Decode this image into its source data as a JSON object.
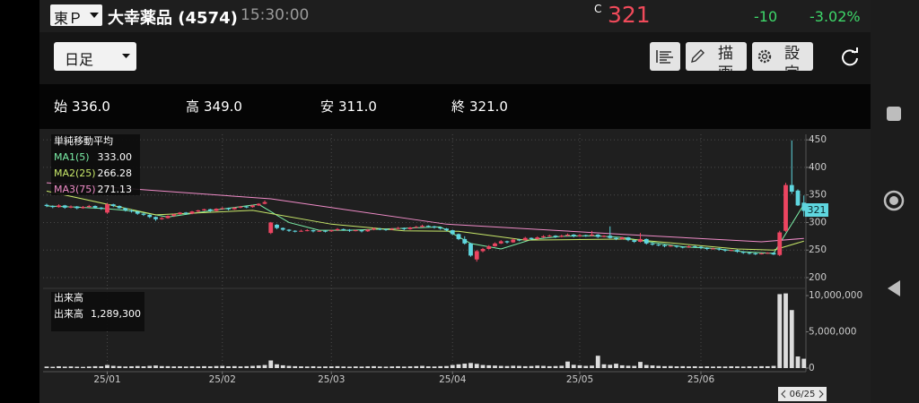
{
  "header": {
    "market": "東Ｐ",
    "name": "大幸薬品 (4574)",
    "time": "15:30:00",
    "price_flag": "C",
    "price": "321",
    "change": "-10",
    "change_pct": "-3.02%"
  },
  "toolbar": {
    "interval": "日足",
    "draw": "描画",
    "settings": "設定"
  },
  "ohlc": [
    {
      "label": "始",
      "value": "336.0"
    },
    {
      "label": "高",
      "value": "349.0"
    },
    {
      "label": "安",
      "value": "311.0"
    },
    {
      "label": "終",
      "value": "321.0"
    }
  ],
  "chart_data": {
    "type": "candlestick",
    "ma_title": "単純移動平均",
    "ylim": [
      187,
      460
    ],
    "yticks": [
      200,
      250,
      300,
      350,
      400,
      450
    ],
    "grid": true,
    "xticks": [
      {
        "value": 10,
        "label": "25/01"
      },
      {
        "value": 29,
        "label": "25/02"
      },
      {
        "value": 47,
        "label": "25/03"
      },
      {
        "value": 67,
        "label": "25/04"
      },
      {
        "value": 88,
        "label": "25/05"
      },
      {
        "value": 108,
        "label": "25/06"
      }
    ],
    "up_color": "#ec4561",
    "down_color": "#5fd6df",
    "candles": [
      [
        332,
        334,
        328,
        330
      ],
      [
        330,
        331,
        326,
        328
      ],
      [
        328,
        333,
        327,
        331
      ],
      [
        331,
        332,
        325,
        327
      ],
      [
        327,
        331,
        326,
        329
      ],
      [
        329,
        330,
        324,
        326
      ],
      [
        326,
        330,
        325,
        328
      ],
      [
        328,
        332,
        327,
        330
      ],
      [
        330,
        331,
        325,
        327
      ],
      [
        327,
        328,
        323,
        325
      ],
      [
        318,
        335,
        316,
        333
      ],
      [
        333,
        334,
        328,
        330
      ],
      [
        330,
        331,
        325,
        326
      ],
      [
        326,
        327,
        320,
        322
      ],
      [
        322,
        324,
        318,
        320
      ],
      [
        320,
        321,
        314,
        316
      ],
      [
        316,
        318,
        312,
        314
      ],
      [
        314,
        315,
        308,
        310
      ],
      [
        310,
        311,
        303,
        306
      ],
      [
        306,
        310,
        305,
        308
      ],
      [
        308,
        313,
        307,
        312
      ],
      [
        312,
        316,
        310,
        315
      ],
      [
        315,
        319,
        314,
        318
      ],
      [
        318,
        319,
        314,
        316
      ],
      [
        316,
        321,
        315,
        320
      ],
      [
        320,
        323,
        318,
        322
      ],
      [
        322,
        325,
        321,
        324
      ],
      [
        324,
        325,
        319,
        321
      ],
      [
        321,
        326,
        320,
        325
      ],
      [
        325,
        328,
        324,
        326
      ],
      [
        326,
        327,
        322,
        324
      ],
      [
        324,
        328,
        323,
        327
      ],
      [
        327,
        330,
        326,
        329
      ],
      [
        329,
        330,
        326,
        328
      ],
      [
        328,
        332,
        327,
        331
      ],
      [
        331,
        335,
        330,
        334
      ],
      [
        334,
        340,
        333,
        337
      ],
      [
        281,
        301,
        279,
        300
      ],
      [
        296,
        297,
        288,
        290
      ],
      [
        290,
        291,
        285,
        287
      ],
      [
        287,
        288,
        283,
        285
      ],
      [
        285,
        286,
        282,
        284
      ],
      [
        284,
        287,
        283,
        285
      ],
      [
        285,
        288,
        284,
        286
      ],
      [
        286,
        287,
        282,
        284
      ],
      [
        284,
        286,
        283,
        285
      ],
      [
        285,
        286,
        282,
        284
      ],
      [
        284,
        287,
        283,
        286
      ],
      [
        286,
        290,
        285,
        288
      ],
      [
        288,
        289,
        285,
        287
      ],
      [
        287,
        288,
        283,
        285
      ],
      [
        285,
        287,
        284,
        286
      ],
      [
        286,
        287,
        282,
        284
      ],
      [
        284,
        288,
        283,
        287
      ],
      [
        287,
        291,
        286,
        289
      ],
      [
        289,
        290,
        286,
        288
      ],
      [
        288,
        289,
        285,
        287
      ],
      [
        287,
        290,
        286,
        289
      ],
      [
        289,
        292,
        288,
        290
      ],
      [
        290,
        291,
        286,
        288
      ],
      [
        288,
        292,
        287,
        291
      ],
      [
        291,
        294,
        290,
        292
      ],
      [
        292,
        296,
        291,
        294
      ],
      [
        294,
        295,
        291,
        293
      ],
      [
        293,
        294,
        289,
        291
      ],
      [
        291,
        292,
        287,
        289
      ],
      [
        289,
        290,
        284,
        286
      ],
      [
        286,
        287,
        277,
        279
      ],
      [
        279,
        280,
        268,
        270
      ],
      [
        270,
        275,
        260,
        262
      ],
      [
        262,
        263,
        238,
        240
      ],
      [
        233,
        250,
        229,
        248
      ],
      [
        248,
        254,
        246,
        252
      ],
      [
        252,
        259,
        251,
        257
      ],
      [
        257,
        264,
        256,
        262
      ],
      [
        262,
        268,
        261,
        266
      ],
      [
        266,
        267,
        262,
        264
      ],
      [
        264,
        271,
        263,
        269
      ],
      [
        269,
        270,
        266,
        268
      ],
      [
        268,
        274,
        267,
        272
      ],
      [
        272,
        273,
        268,
        270
      ],
      [
        270,
        275,
        269,
        273
      ],
      [
        273,
        277,
        272,
        275
      ],
      [
        275,
        278,
        274,
        276
      ],
      [
        276,
        277,
        272,
        274
      ],
      [
        274,
        278,
        273,
        276
      ],
      [
        276,
        280,
        275,
        278
      ],
      [
        278,
        279,
        273,
        275
      ],
      [
        275,
        279,
        274,
        277
      ],
      [
        277,
        278,
        274,
        276
      ],
      [
        276,
        285,
        275,
        278
      ],
      [
        278,
        279,
        272,
        274
      ],
      [
        274,
        277,
        273,
        276
      ],
      [
        276,
        293,
        271,
        272
      ],
      [
        272,
        273,
        268,
        270
      ],
      [
        270,
        274,
        269,
        273
      ],
      [
        273,
        274,
        266,
        268
      ],
      [
        268,
        269,
        263,
        265
      ],
      [
        265,
        281,
        264,
        270
      ],
      [
        270,
        271,
        260,
        262
      ],
      [
        262,
        263,
        258,
        260
      ],
      [
        260,
        261,
        257,
        259
      ],
      [
        259,
        260,
        255,
        257
      ],
      [
        257,
        259,
        256,
        258
      ],
      [
        258,
        259,
        254,
        256
      ],
      [
        256,
        257,
        253,
        255
      ],
      [
        255,
        258,
        254,
        257
      ],
      [
        257,
        258,
        254,
        256
      ],
      [
        256,
        257,
        252,
        254
      ],
      [
        254,
        255,
        250,
        252
      ],
      [
        252,
        254,
        251,
        253
      ],
      [
        253,
        254,
        249,
        251
      ],
      [
        251,
        252,
        247,
        249
      ],
      [
        249,
        251,
        248,
        250
      ],
      [
        250,
        251,
        245,
        247
      ],
      [
        247,
        248,
        243,
        245
      ],
      [
        245,
        246,
        242,
        244
      ],
      [
        244,
        245,
        241,
        243
      ],
      [
        243,
        245,
        242,
        244
      ],
      [
        244,
        246,
        243,
        245
      ],
      [
        245,
        246,
        241,
        242
      ],
      [
        241,
        285,
        239,
        282
      ],
      [
        285,
        372,
        283,
        368
      ],
      [
        368,
        449,
        352,
        356
      ],
      [
        358,
        360,
        330,
        331
      ],
      [
        336,
        349,
        311,
        321
      ]
    ],
    "ma": [
      {
        "name": "MA1(5)",
        "color": "#7cf0a8",
        "x": [
          0,
          5,
          10,
          15,
          20,
          25,
          30,
          35,
          40,
          45,
          50,
          55,
          60,
          65,
          70,
          75,
          80,
          85,
          90,
          95,
          100,
          105,
          110,
          115,
          120,
          125
        ],
        "values": [
          330,
          328,
          325,
          320,
          310,
          318,
          326,
          333,
          300,
          286,
          286,
          288,
          290,
          292,
          262,
          252,
          269,
          275,
          276,
          273,
          264,
          256,
          253,
          247,
          244,
          333
        ],
        "value_label": "333.00"
      },
      {
        "name": "MA2(25)",
        "color": "#c8e86a",
        "x": [
          0,
          18,
          34,
          47,
          59,
          68,
          79,
          96,
          114,
          120,
          125
        ],
        "values": [
          357,
          314,
          322,
          297,
          285,
          284,
          268,
          270,
          252,
          250,
          266.28
        ],
        "value_label": "266.28"
      },
      {
        "name": "MA3(75)",
        "color": "#f08cc8",
        "x": [
          0,
          37,
          66,
          96,
          118,
          125
        ],
        "values": [
          372,
          343,
          297,
          278,
          265,
          271.13
        ],
        "value_label": "271.13"
      }
    ],
    "volume_title": "出来高",
    "volume_label": "出来高",
    "volume_value_label": "1,289,300",
    "volume_color": "#dcdcdc",
    "volume_ylim": [
      0,
      10500000
    ],
    "volume_yticks": [
      0,
      {
        "value": 5000000,
        "label": "5,000,000"
      },
      {
        "value": 10000000,
        "label": "10,000,000"
      }
    ],
    "volume": [
      210000,
      180000,
      250000,
      200000,
      230000,
      190000,
      170000,
      220000,
      260000,
      240000,
      420000,
      300000,
      260000,
      220000,
      250000,
      280000,
      240000,
      300000,
      350000,
      270000,
      260000,
      230000,
      240000,
      220000,
      250000,
      230000,
      260000,
      240000,
      280000,
      300000,
      250000,
      270000,
      230000,
      260000,
      300000,
      350000,
      420000,
      1050000,
      520000,
      380000,
      300000,
      260000,
      240000,
      220000,
      250000,
      210000,
      230000,
      240000,
      260000,
      220000,
      200000,
      230000,
      210000,
      240000,
      260000,
      220000,
      200000,
      230000,
      250000,
      210000,
      240000,
      260000,
      300000,
      240000,
      220000,
      260000,
      280000,
      420000,
      520000,
      610000,
      700000,
      580000,
      420000,
      380000,
      340000,
      300000,
      280000,
      320000,
      300000,
      260000,
      280000,
      340000,
      300000,
      260000,
      280000,
      320000,
      900000,
      450000,
      380000,
      300000,
      340000,
      1700000,
      520000,
      450000,
      600000,
      380000,
      320000,
      300000,
      850000,
      420000,
      360000,
      300000,
      260000,
      280000,
      240000,
      260000,
      230000,
      250000,
      220000,
      240000,
      210000,
      230000,
      220000,
      250000,
      230000,
      210000,
      240000,
      220000,
      260000,
      250000,
      300000,
      10200000,
      10300000,
      8000000,
      1600000,
      1289300
    ],
    "cursor_label": "06/25"
  }
}
